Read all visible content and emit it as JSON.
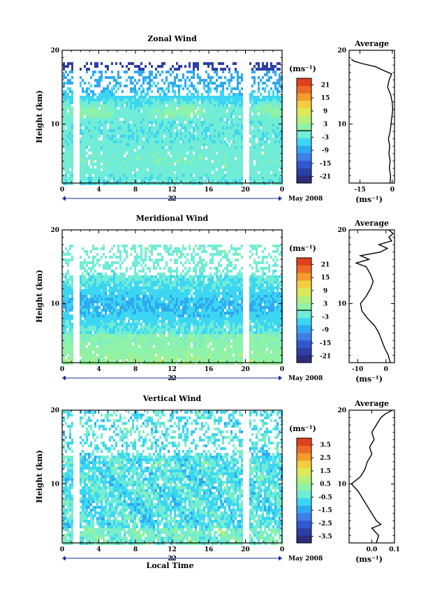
{
  "chart_data": [
    {
      "type": "heatmap",
      "title": "Zonal Wind",
      "ylabel": "Height (km)",
      "unit": "(ms⁻¹)",
      "x_ticks": [
        "0",
        "4",
        "8",
        "12",
        "16",
        "20",
        "0"
      ],
      "x_range_hours": [
        0,
        24
      ],
      "day_label": "22",
      "month_label": "May 2008",
      "y_ticks": [
        "20",
        "10"
      ],
      "ylim_km": [
        2,
        20
      ],
      "data_ceiling_km": 18.5,
      "gaps_hours": [
        1.5,
        20.0
      ],
      "colorbar_ticks": [
        "21",
        "15",
        "9",
        "3",
        "-3",
        "-9",
        "-15",
        "-21"
      ],
      "colorbar_range": [
        -24,
        24
      ],
      "zero_contour": true,
      "profile": {
        "title": "Average",
        "xlabel": "(ms⁻¹)",
        "x_ticks": [
          "-15",
          "0"
        ],
        "x_tick_values": [
          -15,
          0
        ],
        "xlim": [
          -20,
          1
        ],
        "y_ticks": [
          "20",
          "10"
        ],
        "points": [
          [
            2.0,
            -1.0
          ],
          [
            3.0,
            -0.8
          ],
          [
            4.0,
            -1.4
          ],
          [
            5.0,
            -1.0
          ],
          [
            6.0,
            -1.6
          ],
          [
            7.0,
            -1.2
          ],
          [
            8.0,
            -1.8
          ],
          [
            9.0,
            -1.0
          ],
          [
            10.0,
            -0.6
          ],
          [
            11.0,
            -0.2
          ],
          [
            12.0,
            0.2
          ],
          [
            13.0,
            -0.1
          ],
          [
            14.0,
            -0.8
          ],
          [
            15.0,
            -2.2
          ],
          [
            16.0,
            -1.5
          ],
          [
            16.8,
            -0.3
          ],
          [
            17.2,
            -3.5
          ],
          [
            17.8,
            -8.0
          ],
          [
            18.2,
            -14.0
          ],
          [
            18.5,
            -17.5
          ],
          [
            18.8,
            -19.0
          ]
        ]
      }
    },
    {
      "type": "heatmap",
      "title": "Meridional Wind",
      "ylabel": "Height (km)",
      "unit": "(ms⁻¹)",
      "x_ticks": [
        "0",
        "4",
        "8",
        "12",
        "16",
        "20",
        "0"
      ],
      "x_range_hours": [
        0,
        24
      ],
      "day_label": "22",
      "month_label": "May 2008",
      "y_ticks": [
        "20",
        "10"
      ],
      "ylim_km": [
        2,
        20
      ],
      "data_ceiling_km": 18.0,
      "gaps_hours": [
        1.5,
        20.0
      ],
      "colorbar_ticks": [
        "21",
        "15",
        "9",
        "3",
        "-3",
        "-9",
        "-15",
        "-21"
      ],
      "colorbar_range": [
        -24,
        24
      ],
      "zero_contour": true,
      "profile": {
        "title": "Average",
        "xlabel": "(ms⁻¹)",
        "x_ticks": [
          "-10",
          "0"
        ],
        "x_tick_values": [
          -10,
          0
        ],
        "xlim": [
          -13,
          3
        ],
        "y_ticks": [
          "20",
          "10"
        ],
        "points": [
          [
            2.0,
            1.5
          ],
          [
            3.0,
            0.8
          ],
          [
            4.0,
            -0.5
          ],
          [
            5.0,
            -1.5
          ],
          [
            6.0,
            -2.5
          ],
          [
            7.0,
            -4.0
          ],
          [
            8.0,
            -6.5
          ],
          [
            9.0,
            -8.5
          ],
          [
            10.0,
            -9.0
          ],
          [
            11.0,
            -7.0
          ],
          [
            12.0,
            -5.5
          ],
          [
            13.0,
            -4.5
          ],
          [
            14.0,
            -5.5
          ],
          [
            15.0,
            -7.0
          ],
          [
            15.5,
            -10.5
          ],
          [
            16.0,
            -6.0
          ],
          [
            16.5,
            -9.0
          ],
          [
            17.0,
            -2.0
          ],
          [
            17.5,
            0.5
          ],
          [
            18.0,
            -2.5
          ],
          [
            18.5,
            2.0
          ],
          [
            19.0,
            1.0
          ],
          [
            19.5,
            2.5
          ],
          [
            20.0,
            1.0
          ]
        ]
      }
    },
    {
      "type": "heatmap",
      "title": "Vertical Wind",
      "ylabel": "Height (km)",
      "xlabel": "Local Time",
      "unit": "(ms⁻¹)",
      "x_ticks": [
        "0",
        "4",
        "8",
        "12",
        "16",
        "20",
        "0"
      ],
      "x_range_hours": [
        0,
        24
      ],
      "day_label": "22",
      "month_label": "May 2008",
      "y_ticks": [
        "20",
        "10"
      ],
      "ylim_km": [
        2,
        20
      ],
      "data_ceiling_km": 19.8,
      "gaps_hours": [
        1.5,
        20.0
      ],
      "colorbar_ticks": [
        "3.5",
        "2.5",
        "1.5",
        "0.5",
        "-0.5",
        "-1.5",
        "-2.5",
        "-3.5"
      ],
      "colorbar_range": [
        -4,
        4
      ],
      "zero_contour": false,
      "profile": {
        "title": "Average",
        "xlabel": "(ms⁻¹)",
        "x_ticks": [
          "0.0",
          "0.1"
        ],
        "x_tick_values": [
          0.0,
          0.1
        ],
        "xlim": [
          -0.1,
          0.1
        ],
        "y_ticks": [
          "20",
          "10"
        ],
        "points": [
          [
            2.0,
            0.02
          ],
          [
            3.0,
            0.03
          ],
          [
            4.0,
            0.0
          ],
          [
            4.5,
            0.04
          ],
          [
            5.0,
            0.02
          ],
          [
            6.0,
            0.0
          ],
          [
            7.0,
            -0.02
          ],
          [
            8.0,
            -0.04
          ],
          [
            9.0,
            -0.06
          ],
          [
            10.0,
            -0.09
          ],
          [
            11.0,
            -0.05
          ],
          [
            12.0,
            -0.03
          ],
          [
            13.0,
            -0.02
          ],
          [
            14.0,
            0.0
          ],
          [
            15.0,
            -0.01
          ],
          [
            16.0,
            0.01
          ],
          [
            17.0,
            0.0
          ],
          [
            18.0,
            0.02
          ],
          [
            19.0,
            0.04
          ],
          [
            19.5,
            0.06
          ],
          [
            20.0,
            0.09
          ]
        ]
      }
    }
  ]
}
